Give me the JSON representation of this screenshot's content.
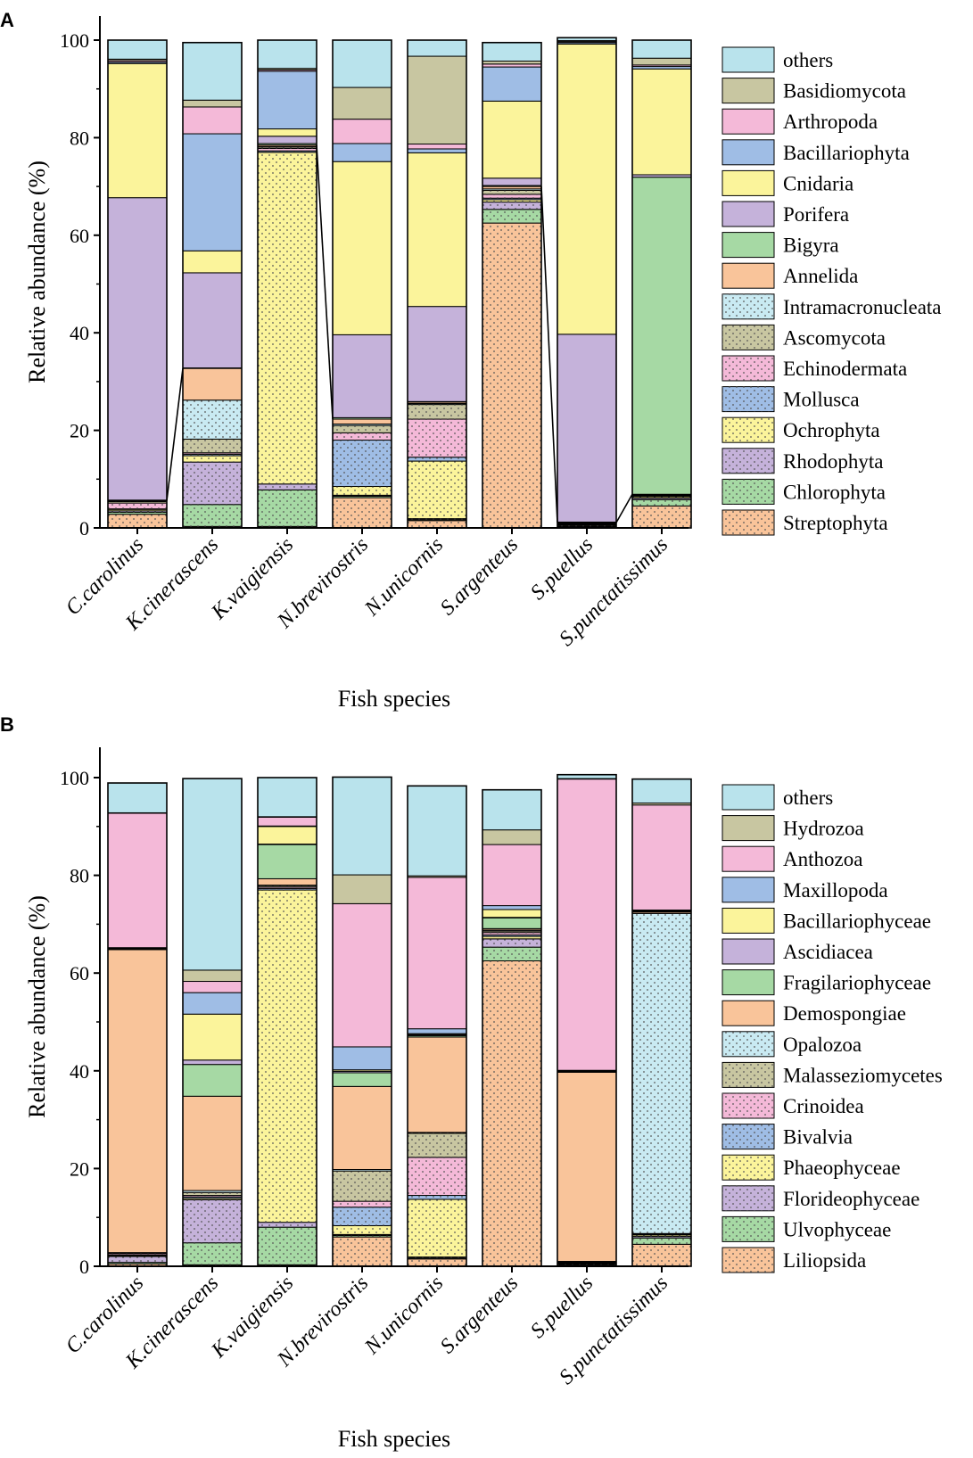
{
  "chart_data": [
    {
      "type": "bar",
      "stacked": true,
      "panel_label": "A",
      "xlabel": "Fish species",
      "ylabel": "Relative abundance (%)",
      "ylim": [
        0,
        100
      ],
      "yticks": [
        0,
        20,
        40,
        60,
        80,
        100
      ],
      "categories": [
        "C.carolinus",
        "K.cinerascens",
        "K.vaigiensis",
        "N.brevirostris",
        "N.unicornis",
        "S.argenteus",
        "S.puellus",
        "S.punctatissimus"
      ],
      "series": [
        {
          "name": "Streptophyta",
          "color": "#f9c49a",
          "pattern": "dot",
          "values": [
            2.8,
            0.3,
            0.3,
            6.2,
            1.5,
            62.5,
            0.2,
            4.5
          ]
        },
        {
          "name": "Chlorophyta",
          "color": "#a6d9a4",
          "pattern": "dot",
          "values": [
            0.4,
            4.5,
            7.5,
            0.3,
            0.2,
            2.8,
            0.1,
            1.3
          ]
        },
        {
          "name": "Rhodophyta",
          "color": "#c5b2da",
          "pattern": "dot",
          "values": [
            0.3,
            8.7,
            1.2,
            0.2,
            0.2,
            1.5,
            0.1,
            0.3
          ]
        },
        {
          "name": "Ochrophyta",
          "color": "#fbf49b",
          "pattern": "dot",
          "values": [
            0.3,
            1.3,
            68.0,
            1.8,
            11.8,
            0.5,
            0.2,
            0.3
          ]
        },
        {
          "name": "Mollusca",
          "color": "#9fbde5",
          "pattern": "dot",
          "values": [
            0.1,
            0.3,
            0.3,
            9.5,
            0.8,
            0.3,
            0.1,
            0.1
          ]
        },
        {
          "name": "Echinodermata",
          "color": "#f4b9d8",
          "pattern": "dot",
          "values": [
            1.2,
            0.3,
            0.5,
            1.5,
            7.8,
            0.8,
            0.1,
            0.1
          ]
        },
        {
          "name": "Ascomycota",
          "color": "#c8c6a1",
          "pattern": "dot",
          "values": [
            0.3,
            2.8,
            0.3,
            1.5,
            3.0,
            0.8,
            0.1,
            0.1
          ]
        },
        {
          "name": "Intramacronucleata",
          "color": "#c9eaf2",
          "pattern": "dot",
          "values": [
            0.1,
            8.0,
            0.1,
            0.3,
            0.2,
            0.3,
            0.1,
            0.1
          ]
        },
        {
          "name": "Annelida",
          "color": "#f9c49a",
          "pattern": "none",
          "values": [
            0.1,
            6.5,
            0.3,
            1.0,
            0.3,
            0.5,
            0.1,
            0.1
          ]
        },
        {
          "name": "Bigyra",
          "color": "#a6d9a4",
          "pattern": "none",
          "values": [
            0.1,
            0.1,
            0.3,
            0.3,
            0.1,
            0.2,
            0.1,
            65.0
          ]
        },
        {
          "name": "Porifera",
          "color": "#c5b2da",
          "pattern": "none",
          "values": [
            62.0,
            19.5,
            1.5,
            17.0,
            19.5,
            1.5,
            38.5,
            0.5
          ]
        },
        {
          "name": "Cnidaria",
          "color": "#fbf49b",
          "pattern": "none",
          "values": [
            27.5,
            4.5,
            1.5,
            35.5,
            31.5,
            15.8,
            59.5,
            21.7
          ]
        },
        {
          "name": "Bacillariophyta",
          "color": "#9fbde5",
          "pattern": "none",
          "values": [
            0.3,
            24.0,
            11.8,
            3.7,
            0.8,
            7.0,
            0.3,
            0.5
          ]
        },
        {
          "name": "Arthropoda",
          "color": "#f4b9d8",
          "pattern": "none",
          "values": [
            0.3,
            5.5,
            0.3,
            5.0,
            1.0,
            0.6,
            0.2,
            0.3
          ]
        },
        {
          "name": "Basidiomycota",
          "color": "#c8c6a1",
          "pattern": "none",
          "values": [
            0.3,
            1.4,
            0.3,
            6.5,
            18.0,
            0.6,
            0.2,
            1.4
          ]
        },
        {
          "name": "others",
          "color": "#b9e3ec",
          "pattern": "none",
          "values": [
            3.9,
            11.8,
            5.8,
            9.7,
            3.3,
            3.8,
            0.6,
            3.7
          ]
        }
      ],
      "connectors": [
        {
          "from": 0,
          "to": 1,
          "boundary_after": "Annelida"
        },
        {
          "from": 2,
          "to": 3,
          "boundary_after": "Annelida"
        },
        {
          "from": 5,
          "to": 6,
          "boundary_after": "Annelida"
        },
        {
          "from": 6,
          "to": 7,
          "boundary_after": "Annelida"
        }
      ]
    },
    {
      "type": "bar",
      "stacked": true,
      "panel_label": "B",
      "xlabel": "Fish species",
      "ylabel": "Relative abundance (%)",
      "ylim": [
        0,
        100
      ],
      "yticks": [
        0,
        20,
        40,
        60,
        80,
        100
      ],
      "categories": [
        "C.carolinus",
        "K.cinerascens",
        "K.vaigiensis",
        "N.brevirostris",
        "N.unicornis",
        "S.argenteus",
        "S.puellus",
        "S.punctatissimus"
      ],
      "series": [
        {
          "name": "Liliopsida",
          "color": "#f9c49a",
          "pattern": "dot",
          "values": [
            0.5,
            0.3,
            0.3,
            6.0,
            1.5,
            62.5,
            0.3,
            4.5
          ]
        },
        {
          "name": "Ulvophyceae",
          "color": "#a6d9a4",
          "pattern": "dot",
          "values": [
            0.3,
            4.5,
            7.7,
            0.3,
            0.2,
            2.8,
            0.1,
            1.3
          ]
        },
        {
          "name": "Florideophyceae",
          "color": "#c5b2da",
          "pattern": "dot",
          "values": [
            1.2,
            8.8,
            1.0,
            0.2,
            0.2,
            1.7,
            0.1,
            0.3
          ]
        },
        {
          "name": "Phaeophyceae",
          "color": "#fbf49b",
          "pattern": "dot",
          "values": [
            0.2,
            0.3,
            68.0,
            1.8,
            11.8,
            0.5,
            0.1,
            0.3
          ]
        },
        {
          "name": "Bivalvia",
          "color": "#9fbde5",
          "pattern": "dot",
          "values": [
            0.1,
            0.3,
            0.3,
            3.8,
            0.8,
            0.3,
            0.1,
            0.1
          ]
        },
        {
          "name": "Crinoidea",
          "color": "#f4b9d8",
          "pattern": "dot",
          "values": [
            0.3,
            0.3,
            0.3,
            1.2,
            7.8,
            0.5,
            0.1,
            0.1
          ]
        },
        {
          "name": "Malasseziomycetes",
          "color": "#c8c6a1",
          "pattern": "dot",
          "values": [
            0.1,
            0.6,
            0.3,
            6.2,
            4.9,
            0.3,
            0.1,
            0.1
          ]
        },
        {
          "name": "Opalozoa",
          "color": "#c9eaf2",
          "pattern": "dot",
          "values": [
            0.1,
            0.4,
            0.1,
            0.3,
            0.2,
            0.2,
            0.1,
            65.5
          ]
        },
        {
          "name": "Demospongiae",
          "color": "#f9c49a",
          "pattern": "none",
          "values": [
            62.0,
            19.3,
            1.3,
            17.0,
            19.5,
            0.3,
            38.7,
            0.3
          ]
        },
        {
          "name": "Fragilariophyceae",
          "color": "#a6d9a4",
          "pattern": "none",
          "values": [
            0.1,
            6.5,
            7.0,
            2.8,
            0.3,
            2.2,
            0.1,
            0.1
          ]
        },
        {
          "name": "Ascidiacea",
          "color": "#c5b2da",
          "pattern": "none",
          "values": [
            0.1,
            0.9,
            0.1,
            0.3,
            0.2,
            0.1,
            0.1,
            0.1
          ]
        },
        {
          "name": "Bacillariophyceae",
          "color": "#fbf49b",
          "pattern": "none",
          "values": [
            0.1,
            9.4,
            3.6,
            0.3,
            0.2,
            1.6,
            0.1,
            0.1
          ]
        },
        {
          "name": "Maxillopoda",
          "color": "#9fbde5",
          "pattern": "none",
          "values": [
            0.1,
            4.4,
            0.1,
            4.7,
            1.0,
            0.8,
            0.1,
            0.1
          ]
        },
        {
          "name": "Anthozoa",
          "color": "#f4b9d8",
          "pattern": "none",
          "values": [
            27.5,
            2.3,
            1.8,
            29.3,
            31.0,
            12.5,
            59.6,
            21.5
          ]
        },
        {
          "name": "Hydrozoa",
          "color": "#c8c6a1",
          "pattern": "none",
          "values": [
            0.1,
            2.3,
            0.1,
            5.9,
            0.3,
            3.0,
            0.1,
            0.4
          ]
        },
        {
          "name": "others",
          "color": "#b9e3ec",
          "pattern": "none",
          "values": [
            6.1,
            39.2,
            8.0,
            20.0,
            18.4,
            8.2,
            0.8,
            4.9
          ]
        }
      ],
      "connectors": []
    }
  ]
}
